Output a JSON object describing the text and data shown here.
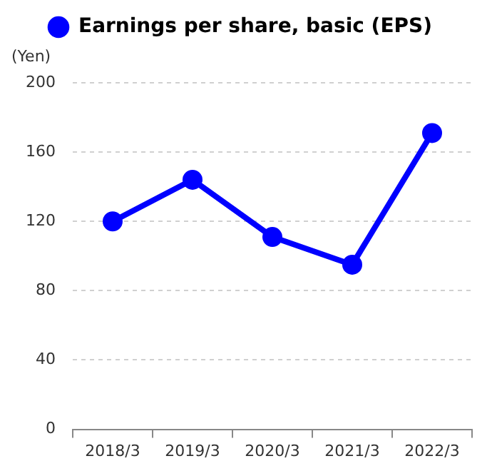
{
  "chart_data": {
    "type": "line",
    "ylabel": "(Yen)",
    "categories": [
      "2018/3",
      "2019/3",
      "2020/3",
      "2021/3",
      "2022/3"
    ],
    "series": [
      {
        "name": "Earnings per share, basic (EPS)",
        "color": "#0000ff",
        "values": [
          120,
          144,
          111,
          95,
          171
        ]
      }
    ],
    "ylim": [
      0,
      200
    ],
    "yticks": [
      0,
      40,
      80,
      120,
      160,
      200
    ],
    "grid": "y",
    "legend": "top",
    "marker": "circle",
    "line_style": "solid"
  }
}
